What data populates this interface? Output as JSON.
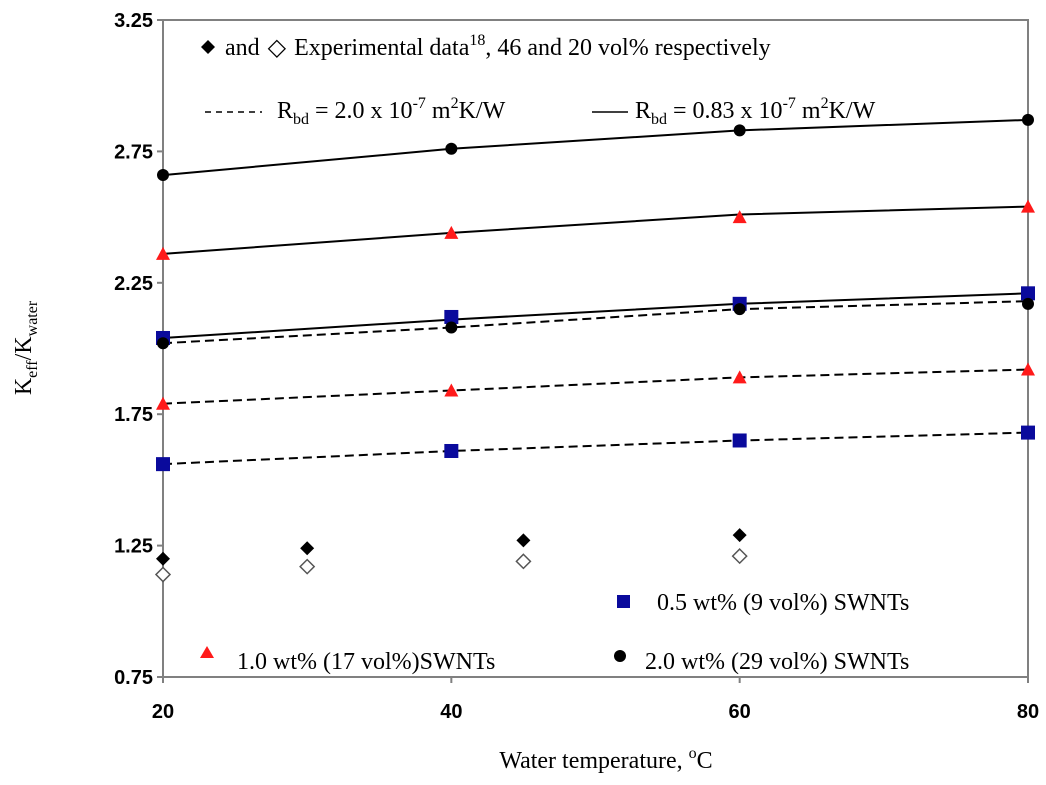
{
  "chart_data": {
    "type": "scatter",
    "xlabel_base": "Water temperature, ",
    "xlabel_sup": "o",
    "xlabel_end": "C",
    "ylabel_main": "K",
    "ylabel_sub1": "eff",
    "ylabel_sep": "/K",
    "ylabel_sub2": "water",
    "xlim": [
      20,
      80
    ],
    "ylim": [
      0.75,
      3.25
    ],
    "x_ticks": [
      "20",
      "40",
      "60",
      "80"
    ],
    "y_ticks": [
      "0.75",
      "1.25",
      "1.75",
      "2.25",
      "2.75",
      "3.25"
    ],
    "grid": false,
    "colors": {
      "blue": "#0a0a9c",
      "red": "#ff1a1a",
      "black": "#000000",
      "gray": "#555555"
    },
    "legend": {
      "exp_and": "and",
      "exp_text": "Experimental data",
      "exp_sup": "18",
      "exp_rest": ", 46 and 20 vol% respectively",
      "dash_R": "R",
      "dash_sub": "bd",
      "dash_val": " = 2.0 x 10",
      "dash_exp": "-7",
      "dash_unit": " m",
      "dash_unit_sup": "2",
      "dash_unit_end": "K/W",
      "solid_R": "R",
      "solid_sub": "bd",
      "solid_val": " = 0.83 x 10",
      "solid_exp": "-7",
      "solid_unit": " m",
      "solid_unit_sup": "2",
      "solid_unit_end": "K/W",
      "blue": "0.5 wt% (9 vol%) SWNTs",
      "red": "1.0 wt% (17 vol%)SWNTs",
      "black": "2.0 wt% (29 vol%) SWNTs"
    },
    "series": [
      {
        "marker": "square",
        "color": "blue",
        "x": [
          20,
          40,
          60,
          80
        ],
        "y": [
          1.56,
          1.61,
          1.65,
          1.68
        ]
      },
      {
        "marker": "square",
        "color": "blue",
        "x": [
          20,
          40,
          60,
          80
        ],
        "y": [
          2.04,
          2.12,
          2.17,
          2.21
        ]
      },
      {
        "marker": "triangle",
        "color": "red",
        "x": [
          20,
          40,
          60,
          80
        ],
        "y": [
          1.79,
          1.84,
          1.89,
          1.92
        ]
      },
      {
        "marker": "triangle",
        "color": "red",
        "x": [
          20,
          40,
          60,
          80
        ],
        "y": [
          2.36,
          2.44,
          2.5,
          2.54
        ]
      },
      {
        "marker": "circle",
        "color": "black",
        "x": [
          20,
          40,
          60,
          80
        ],
        "y": [
          2.02,
          2.08,
          2.15,
          2.17
        ]
      },
      {
        "marker": "circle",
        "color": "black",
        "x": [
          20,
          40,
          60,
          80
        ],
        "y": [
          2.66,
          2.76,
          2.83,
          2.87
        ]
      },
      {
        "marker": "diamond-filled",
        "color": "black",
        "x": [
          20,
          30,
          45,
          60
        ],
        "y": [
          1.2,
          1.24,
          1.27,
          1.29
        ]
      },
      {
        "marker": "diamond-open",
        "color": "gray",
        "x": [
          20,
          30,
          45,
          60
        ],
        "y": [
          1.14,
          1.17,
          1.19,
          1.21
        ]
      }
    ],
    "fit_lines": [
      {
        "style": "dashed",
        "x": [
          20,
          40,
          60,
          80
        ],
        "y": [
          1.56,
          1.61,
          1.65,
          1.68
        ]
      },
      {
        "style": "dashed",
        "x": [
          20,
          40,
          60,
          80
        ],
        "y": [
          1.79,
          1.84,
          1.89,
          1.92
        ]
      },
      {
        "style": "dashed",
        "x": [
          20,
          40,
          60,
          80
        ],
        "y": [
          2.02,
          2.08,
          2.15,
          2.18
        ]
      },
      {
        "style": "solid",
        "x": [
          20,
          40,
          60,
          80
        ],
        "y": [
          2.04,
          2.11,
          2.17,
          2.21
        ]
      },
      {
        "style": "solid",
        "x": [
          20,
          40,
          60,
          80
        ],
        "y": [
          2.36,
          2.44,
          2.51,
          2.54
        ]
      },
      {
        "style": "solid",
        "x": [
          20,
          40,
          60,
          80
        ],
        "y": [
          2.66,
          2.76,
          2.83,
          2.87
        ]
      }
    ]
  }
}
